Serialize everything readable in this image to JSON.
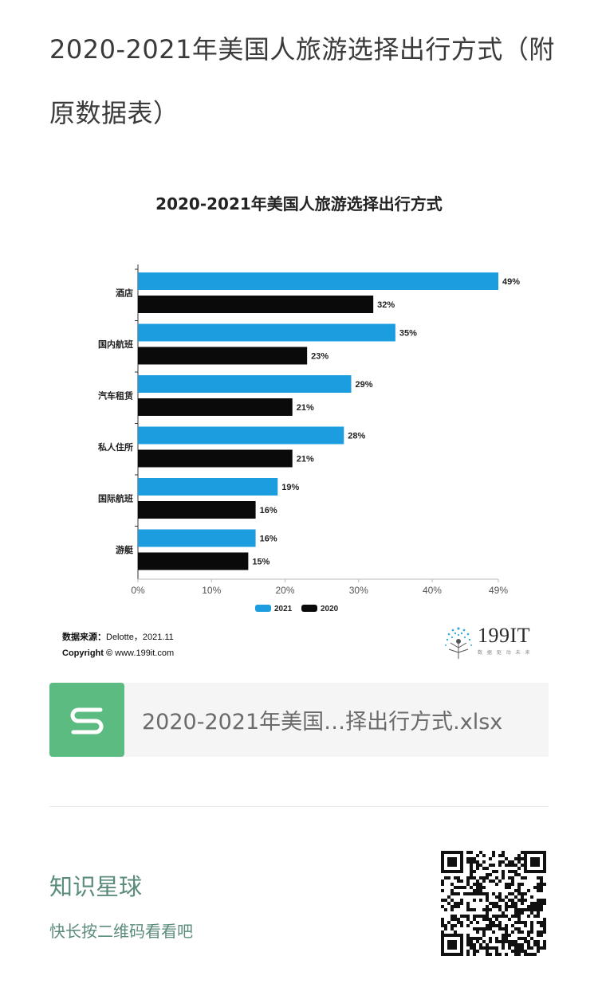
{
  "page": {
    "title": "2020-2021年美国人旅游选择出行方式（附原数据表）"
  },
  "chart_data": {
    "type": "bar",
    "orientation": "horizontal",
    "title": "2020-2021年美国人旅游选择出行方式",
    "categories": [
      "酒店",
      "国内航班",
      "汽车租赁",
      "私人住所",
      "国际航班",
      "游艇"
    ],
    "series": [
      {
        "name": "2021",
        "color": "#1c9de0",
        "values": [
          49,
          35,
          29,
          28,
          19,
          16
        ]
      },
      {
        "name": "2020",
        "color": "#0a0a0a",
        "values": [
          32,
          23,
          21,
          21,
          16,
          15
        ]
      }
    ],
    "xticks": [
      "0%",
      "10%",
      "20%",
      "30%",
      "40%",
      "49%"
    ],
    "xlim": [
      0,
      49
    ],
    "value_suffix": "%",
    "legend": "bottom-center"
  },
  "source": {
    "label": "数据来源：",
    "text": "Delotte，2021.11",
    "copyright_label": "Copyright ©",
    "copyright_text": "www.199it.com"
  },
  "brand": {
    "name": "199IT",
    "tagline": "数 据 驱 动 未 来",
    "dot_color": "#3aa9d8"
  },
  "file": {
    "icon": "spreadsheet-s-icon",
    "name": "2020-2021年美国…择出行方式.xlsx",
    "icon_color": "#5cbb81"
  },
  "planet": {
    "title": "知识星球",
    "subtitle": "快长按二维码看看吧",
    "qr_icon": "qr-code-icon"
  }
}
